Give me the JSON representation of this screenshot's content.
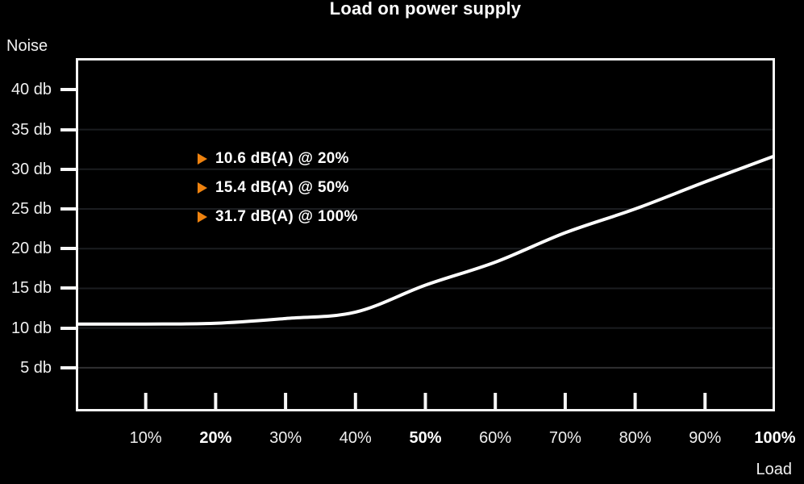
{
  "chart_data": {
    "type": "line",
    "title": "Load on power supply",
    "xlabel": "Load",
    "ylabel": "Noise",
    "x": [
      0,
      10,
      20,
      30,
      40,
      50,
      60,
      70,
      80,
      90,
      100
    ],
    "values": [
      10.5,
      10.5,
      10.6,
      11.2,
      12.0,
      15.4,
      18.3,
      22.0,
      25.0,
      28.4,
      31.7
    ],
    "xlim": [
      0,
      100
    ],
    "ylim": [
      -0.5,
      44
    ],
    "grid": true,
    "legend_position": "top-left-inside",
    "x_ticks": [
      {
        "value": 10,
        "label": "10%",
        "bold": false,
        "tick_line": true
      },
      {
        "value": 20,
        "label": "20%",
        "bold": true,
        "tick_line": true
      },
      {
        "value": 30,
        "label": "30%",
        "bold": false,
        "tick_line": true
      },
      {
        "value": 40,
        "label": "40%",
        "bold": false,
        "tick_line": true
      },
      {
        "value": 50,
        "label": "50%",
        "bold": true,
        "tick_line": true
      },
      {
        "value": 60,
        "label": "60%",
        "bold": false,
        "tick_line": true
      },
      {
        "value": 70,
        "label": "70%",
        "bold": false,
        "tick_line": true
      },
      {
        "value": 80,
        "label": "80%",
        "bold": false,
        "tick_line": true
      },
      {
        "value": 90,
        "label": "90%",
        "bold": false,
        "tick_line": true
      },
      {
        "value": 100,
        "label": "100%",
        "bold": true,
        "tick_line": false
      }
    ],
    "y_ticks": [
      {
        "value": 40,
        "label": "40 db"
      },
      {
        "value": 35,
        "label": "35 db"
      },
      {
        "value": 30,
        "label": "30 db"
      },
      {
        "value": 25,
        "label": "25 db"
      },
      {
        "value": 20,
        "label": "20 db"
      },
      {
        "value": 15,
        "label": "15 db"
      },
      {
        "value": 10,
        "label": "10 db"
      },
      {
        "value": 5,
        "label": "5 db"
      }
    ],
    "gridlines": [
      {
        "value": 35,
        "color": "#1b1d20"
      },
      {
        "value": 30,
        "color": "#1b1d20"
      },
      {
        "value": 25,
        "color": "#1b1d20"
      },
      {
        "value": 20,
        "color": "#1b1d20"
      },
      {
        "value": 15,
        "color": "#1b1d20"
      },
      {
        "value": 10,
        "color": "#1b1d20"
      },
      {
        "value": 5,
        "color": "#303032"
      }
    ],
    "annotations": [
      {
        "db": 10.6,
        "load": "20%",
        "text": "10.6 dB(A) @ 20%"
      },
      {
        "db": 15.4,
        "load": "50%",
        "text": "15.4 dB(A) @ 50%"
      },
      {
        "db": 31.7,
        "load": "100%",
        "text": "31.7 dB(A) @ 100%"
      }
    ],
    "colors": {
      "line": "#ffffff",
      "accent": "#ee820f",
      "background": "#000000",
      "text": "#f5f5f5",
      "border": "#f8f8f8"
    }
  }
}
